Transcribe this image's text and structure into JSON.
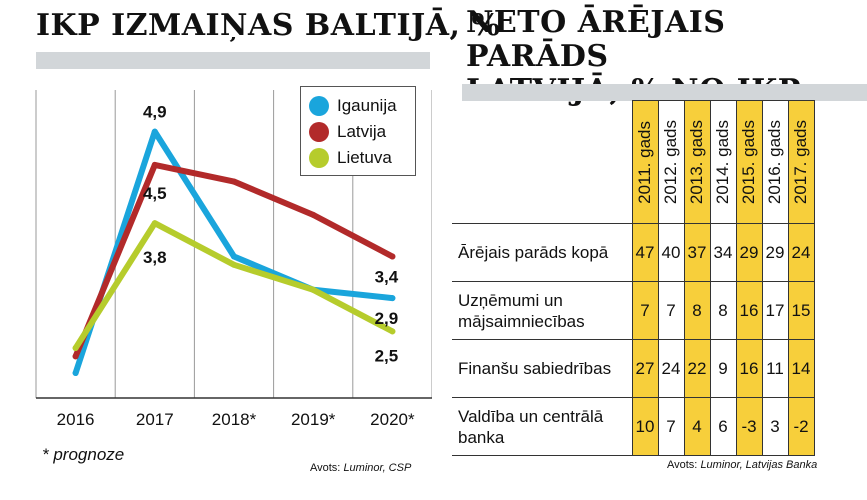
{
  "left_panel": {
    "title": "IKP IZMAIŅAS BALTIJĀ, %",
    "footnote": "* prognoze",
    "source_label": "Avots:",
    "source_value": "Luminor, CSP"
  },
  "right_panel": {
    "title_line1": "NETO ĀRĒJAIS PARĀDS",
    "title_line2": "LATVIJĀ, % NO IKP",
    "source_label": "Avots:",
    "source_value": "Luminor, Latvijas Banka"
  },
  "chart_data": [
    {
      "type": "line",
      "title": "IKP IZMAIŅAS BALTIJĀ, %",
      "categories": [
        "2016",
        "2017",
        "2018*",
        "2019*",
        "2020*"
      ],
      "ylim": [
        1.7,
        5.4
      ],
      "grid": "vertical",
      "legend_position": "top-right",
      "series": [
        {
          "name": "Igaunija",
          "color": "#1aa5dc",
          "values": [
            2.0,
            4.9,
            3.4,
            3.0,
            2.9
          ],
          "end_label": "2,9",
          "peak_label": "4,9"
        },
        {
          "name": "Latvija",
          "color": "#b22a2a",
          "values": [
            2.2,
            4.5,
            4.3,
            3.9,
            3.4
          ],
          "end_label": "3,4",
          "peak_label": "4,5"
        },
        {
          "name": "Lietuva",
          "color": "#b6cc2c",
          "values": [
            2.3,
            3.8,
            3.3,
            3.0,
            2.5
          ],
          "end_label": "2,5",
          "peak_label": "3,8"
        }
      ]
    },
    {
      "type": "table",
      "title": "NETO ĀRĒJAIS PARĀDS LATVIJĀ, % NO IKP",
      "columns": [
        "2011. gads",
        "2012. gads",
        "2013. gads",
        "2014. gads",
        "2015. gads",
        "2016. gads",
        "2017. gads"
      ],
      "highlight_color": "#f7cf3b",
      "highlighted_columns": [
        0,
        2,
        4,
        6
      ],
      "rows": [
        {
          "label": "Ārējais parāds kopā",
          "values": [
            "47",
            "40",
            "37",
            "34",
            "29",
            "29",
            "24"
          ]
        },
        {
          "label": "Uzņēmumi un mājsaimniecības",
          "values": [
            "7",
            "7",
            "8",
            "8",
            "16",
            "17",
            "15"
          ]
        },
        {
          "label": "Finanšu sabiedrības",
          "values": [
            "27",
            "24",
            "22",
            "9",
            "16",
            "11",
            "14"
          ]
        },
        {
          "label": "Valdība un centrālā banka",
          "values": [
            "10",
            "7",
            "4",
            "6",
            "-3",
            "3",
            "-2"
          ]
        }
      ]
    }
  ]
}
